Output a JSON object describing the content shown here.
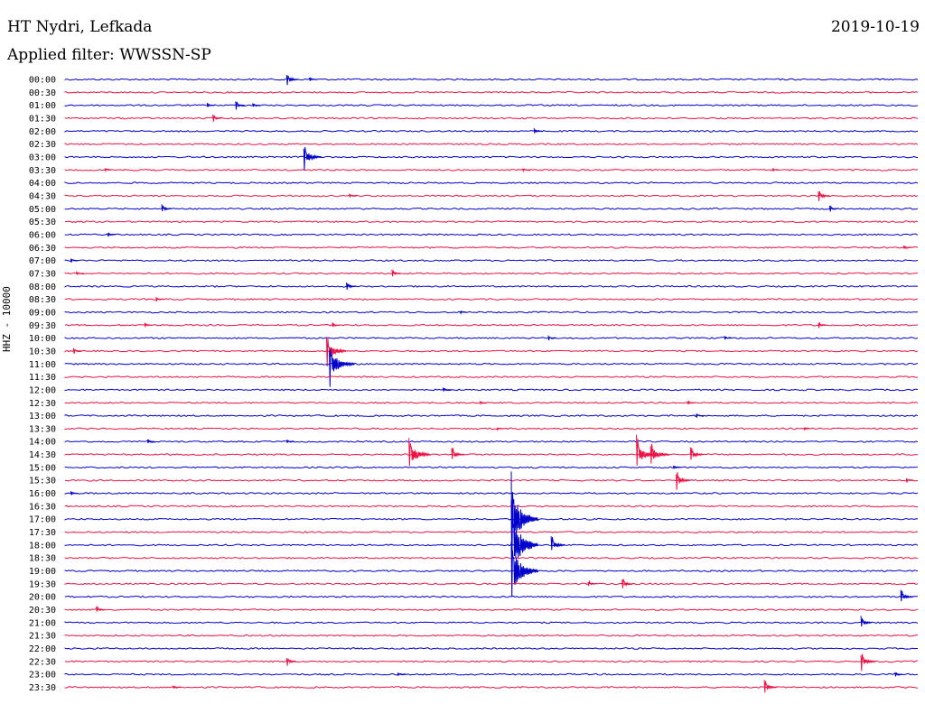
{
  "header": {
    "station": "HT Nydri, Lefkada",
    "filter": "Applied filter: WWSSN-SP",
    "date": "2019-10-19"
  },
  "chart_data": {
    "type": "line",
    "title": "HT Nydri, Lefkada",
    "subtitle": "Applied filter: WWSSN-SP",
    "date": "2019-10-19",
    "ylabel": "HHZ - 10000",
    "xlabel": "",
    "traces_per_hour": 2,
    "trace_minutes": 30,
    "colors": {
      "even": "#0000cc",
      "odd": "#ee1144"
    },
    "traces": [
      {
        "label": "00:00",
        "events": [
          {
            "minute": 7.8,
            "amp": 9
          },
          {
            "minute": 8.6,
            "amp": 3
          }
        ]
      },
      {
        "label": "00:30",
        "events": []
      },
      {
        "label": "01:00",
        "events": [
          {
            "minute": 5.0,
            "amp": 3
          },
          {
            "minute": 6.0,
            "amp": 6
          },
          {
            "minute": 6.6,
            "amp": 3
          }
        ]
      },
      {
        "label": "01:30",
        "events": [
          {
            "minute": 5.2,
            "amp": 5
          }
        ]
      },
      {
        "label": "02:00",
        "events": [
          {
            "minute": 16.5,
            "amp": 4
          }
        ]
      },
      {
        "label": "02:30",
        "events": []
      },
      {
        "label": "03:00",
        "events": [
          {
            "minute": 8.4,
            "amp": 17
          }
        ]
      },
      {
        "label": "03:30",
        "events": [
          {
            "minute": 1.4,
            "amp": 2
          },
          {
            "minute": 16.1,
            "amp": 3
          },
          {
            "minute": 24.9,
            "amp": 2
          }
        ]
      },
      {
        "label": "04:00",
        "events": []
      },
      {
        "label": "04:30",
        "events": [
          {
            "minute": 10.0,
            "amp": 3
          },
          {
            "minute": 26.5,
            "amp": 9
          }
        ]
      },
      {
        "label": "05:00",
        "events": [
          {
            "minute": 3.4,
            "amp": 6
          },
          {
            "minute": 26.9,
            "amp": 4
          }
        ]
      },
      {
        "label": "05:30",
        "events": []
      },
      {
        "label": "06:00",
        "events": [
          {
            "minute": 1.5,
            "amp": 3
          }
        ]
      },
      {
        "label": "06:30",
        "events": [
          {
            "minute": 29.5,
            "amp": 3
          }
        ]
      },
      {
        "label": "07:00",
        "events": [
          {
            "minute": 0.2,
            "amp": 3
          }
        ]
      },
      {
        "label": "07:30",
        "events": [
          {
            "minute": 0.4,
            "amp": 3
          },
          {
            "minute": 11.5,
            "amp": 5
          }
        ]
      },
      {
        "label": "08:00",
        "events": [
          {
            "minute": 9.9,
            "amp": 6
          }
        ]
      },
      {
        "label": "08:30",
        "events": [
          {
            "minute": 3.2,
            "amp": 3
          }
        ]
      },
      {
        "label": "09:00",
        "events": [
          {
            "minute": 13.9,
            "amp": 2
          }
        ]
      },
      {
        "label": "09:30",
        "events": [
          {
            "minute": 2.8,
            "amp": 3
          },
          {
            "minute": 9.4,
            "amp": 3
          },
          {
            "minute": 26.5,
            "amp": 4
          }
        ]
      },
      {
        "label": "10:00",
        "events": [
          {
            "minute": 17.0,
            "amp": 3
          },
          {
            "minute": 23.2,
            "amp": 3
          }
        ]
      },
      {
        "label": "10:30",
        "events": [
          {
            "minute": 0.3,
            "amp": 4
          },
          {
            "minute": 9.2,
            "amp": 20
          }
        ]
      },
      {
        "label": "11:00",
        "events": [
          {
            "minute": 9.3,
            "amp": 28
          }
        ]
      },
      {
        "label": "11:30",
        "events": []
      },
      {
        "label": "12:00",
        "events": [
          {
            "minute": 13.3,
            "amp": 4
          }
        ]
      },
      {
        "label": "12:30",
        "events": [
          {
            "minute": 14.6,
            "amp": 2
          },
          {
            "minute": 21.9,
            "amp": 3
          }
        ]
      },
      {
        "label": "13:00",
        "events": [
          {
            "minute": 22.2,
            "amp": 3
          }
        ]
      },
      {
        "label": "13:30",
        "events": [
          {
            "minute": 15.2,
            "amp": 2
          },
          {
            "minute": 26.0,
            "amp": 2
          }
        ]
      },
      {
        "label": "14:00",
        "events": [
          {
            "minute": 2.9,
            "amp": 3
          },
          {
            "minute": 7.8,
            "amp": 3
          }
        ]
      },
      {
        "label": "14:30",
        "events": [
          {
            "minute": 12.1,
            "amp": 22
          },
          {
            "minute": 13.6,
            "amp": 10
          },
          {
            "minute": 20.1,
            "amp": 22
          },
          {
            "minute": 20.6,
            "amp": 18
          },
          {
            "minute": 22.0,
            "amp": 10
          }
        ]
      },
      {
        "label": "15:00",
        "events": [
          {
            "minute": 21.4,
            "amp": 3
          }
        ]
      },
      {
        "label": "15:30",
        "events": [
          {
            "minute": 21.5,
            "amp": 12
          },
          {
            "minute": 29.6,
            "amp": 3
          }
        ]
      },
      {
        "label": "16:00",
        "events": [
          {
            "minute": 0.2,
            "amp": 3
          }
        ]
      },
      {
        "label": "16:30",
        "events": []
      },
      {
        "label": "17:00",
        "events": [
          {
            "minute": 15.7,
            "amp": 60
          }
        ]
      },
      {
        "label": "17:30",
        "events": []
      },
      {
        "label": "18:00",
        "events": [
          {
            "minute": 15.7,
            "amp": 58
          },
          {
            "minute": 17.1,
            "amp": 12
          }
        ]
      },
      {
        "label": "18:30",
        "events": []
      },
      {
        "label": "19:00",
        "events": [
          {
            "minute": 15.7,
            "amp": 45
          }
        ]
      },
      {
        "label": "19:30",
        "events": [
          {
            "minute": 18.4,
            "amp": 4
          },
          {
            "minute": 19.6,
            "amp": 8
          }
        ]
      },
      {
        "label": "20:00",
        "events": [
          {
            "minute": 29.4,
            "amp": 10
          }
        ]
      },
      {
        "label": "20:30",
        "events": [
          {
            "minute": 1.1,
            "amp": 5
          }
        ]
      },
      {
        "label": "21:00",
        "events": [
          {
            "minute": 28.0,
            "amp": 8
          }
        ]
      },
      {
        "label": "21:30",
        "events": []
      },
      {
        "label": "22:00",
        "events": []
      },
      {
        "label": "22:30",
        "events": [
          {
            "minute": 7.8,
            "amp": 6
          },
          {
            "minute": 28.0,
            "amp": 12
          }
        ]
      },
      {
        "label": "23:00",
        "events": [
          {
            "minute": 11.7,
            "amp": 3
          },
          {
            "minute": 29.2,
            "amp": 3
          }
        ]
      },
      {
        "label": "23:30",
        "events": [
          {
            "minute": 3.8,
            "amp": 3
          },
          {
            "minute": 24.6,
            "amp": 10
          }
        ]
      }
    ]
  }
}
